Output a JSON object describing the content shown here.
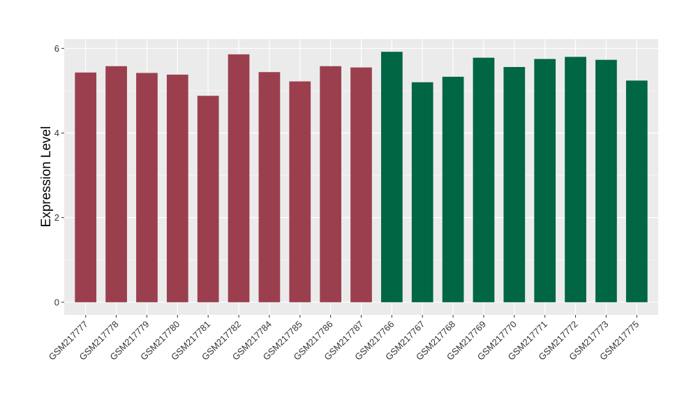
{
  "chart_data": {
    "type": "bar",
    "title": "",
    "xlabel": "",
    "ylabel": "Expression Level",
    "ylim": [
      -0.3,
      6.22
    ],
    "y_ticks": [
      0,
      2,
      4,
      6
    ],
    "grid": true,
    "legend": "none",
    "colors": {
      "group1": "#9b3f4e",
      "group2": "#006643",
      "panel": "#ebebeb",
      "grid": "#ffffff"
    },
    "categories": [
      "GSM217777",
      "GSM217778",
      "GSM217779",
      "GSM217780",
      "GSM217781",
      "GSM217782",
      "GSM217784",
      "GSM217785",
      "GSM217786",
      "GSM217787",
      "GSM217766",
      "GSM217767",
      "GSM217768",
      "GSM217769",
      "GSM217770",
      "GSM217771",
      "GSM217772",
      "GSM217773",
      "GSM217775"
    ],
    "values": [
      5.43,
      5.58,
      5.42,
      5.38,
      4.88,
      5.86,
      5.44,
      5.22,
      5.58,
      5.55,
      5.92,
      5.2,
      5.33,
      5.78,
      5.56,
      5.75,
      5.8,
      5.73,
      5.24
    ],
    "groups": [
      1,
      1,
      1,
      1,
      1,
      1,
      1,
      1,
      1,
      1,
      2,
      2,
      2,
      2,
      2,
      2,
      2,
      2,
      2
    ]
  }
}
